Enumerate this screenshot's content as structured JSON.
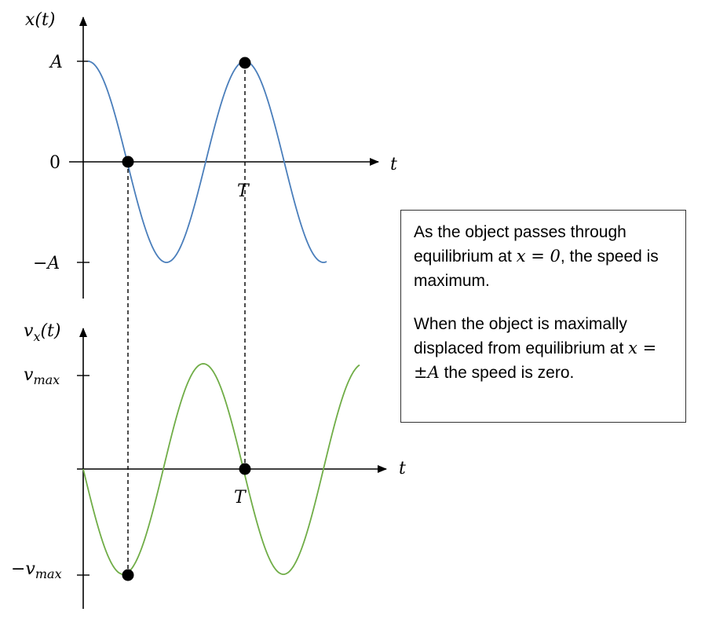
{
  "top_graph": {
    "y_axis_label": "x(t)",
    "x_axis_label": "t",
    "tick_A": "A",
    "tick_zero": "0",
    "tick_minus_A": "−A",
    "period_label": "T",
    "curve_color": "#4a7ebb"
  },
  "bottom_graph": {
    "y_axis_label_main": "v",
    "y_axis_label_sub": "x",
    "y_axis_label_arg": "(t)",
    "x_axis_label": "t",
    "tick_vmax_main": "v",
    "tick_vmax_sub": "max",
    "tick_minus_vmax_main": "−v",
    "tick_minus_vmax_sub": "max",
    "period_label": "T",
    "curve_color": "#70ad47"
  },
  "callout": {
    "p1_a": "As the object passes through equilibrium at ",
    "p1_math": "x = 0",
    "p1_b": ", the speed is maximum.",
    "p2_a": "When the object is maximally displaced from equilibrium at ",
    "p2_math": "x = ±A",
    "p2_b": " the speed is zero."
  }
}
